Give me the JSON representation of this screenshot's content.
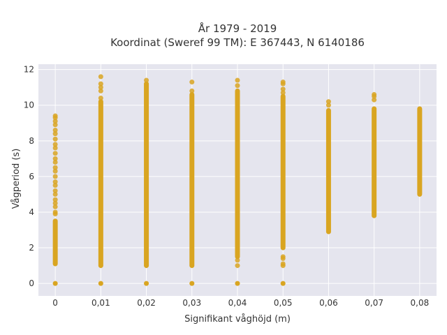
{
  "chart_data": {
    "type": "scatter",
    "title_lines": [
      "År 1979 - 2019",
      "Koordinat (Sweref 99 TM): E 367443, N 6140186"
    ],
    "xlabel": "Signifikant våghöjd (m)",
    "ylabel": "Vågperiod (s)",
    "x_tick_labels": [
      "0",
      "0,01",
      "0,02",
      "0,03",
      "0,04",
      "0,05",
      "0,06",
      "0,07",
      "0,08"
    ],
    "y_tick_labels": [
      "0",
      "2",
      "4",
      "6",
      "8",
      "10",
      "12"
    ],
    "xlim": [
      -0.0037,
      0.0837
    ],
    "ylim": [
      -0.7,
      12.3
    ],
    "grid": true,
    "legend": "none",
    "colors": {
      "marker": "#D9A521",
      "plot_bg": "#E5E5EE",
      "grid": "#FFFFFF"
    },
    "series": [
      {
        "x": 0.0,
        "zero_cluster": true,
        "solid_range": [
          1.1,
          3.5
        ],
        "points": [
          9.4,
          9.3,
          9.1,
          8.9,
          8.6,
          8.4,
          8.1,
          7.8,
          7.6,
          7.3,
          7.0,
          6.8,
          6.5,
          6.3,
          6.0,
          5.7,
          5.5,
          5.2,
          5.0,
          4.7,
          4.5,
          4.3,
          4.0,
          3.9
        ]
      },
      {
        "x": 0.01,
        "zero_cluster": true,
        "solid_range": [
          1.0,
          10.2
        ],
        "points": [
          11.6,
          11.2,
          11.0,
          10.8,
          10.4
        ]
      },
      {
        "x": 0.02,
        "zero_cluster": true,
        "solid_range": [
          1.0,
          11.2
        ],
        "points": [
          11.4
        ]
      },
      {
        "x": 0.03,
        "zero_cluster": true,
        "solid_range": [
          1.0,
          10.6
        ],
        "points": [
          11.3,
          10.8
        ]
      },
      {
        "x": 0.04,
        "zero_cluster": true,
        "solid_range": [
          1.5,
          10.8
        ],
        "points": [
          11.4,
          11.1,
          1.3,
          1.0
        ]
      },
      {
        "x": 0.05,
        "zero_cluster": true,
        "solid_range": [
          2.0,
          10.5
        ],
        "points": [
          11.3,
          11.2,
          10.9,
          10.7,
          1.5,
          1.4,
          1.1,
          1.0
        ]
      },
      {
        "x": 0.06,
        "zero_cluster": false,
        "solid_range": [
          2.9,
          9.7
        ],
        "points": [
          10.2,
          10.0
        ]
      },
      {
        "x": 0.07,
        "zero_cluster": false,
        "solid_range": [
          3.8,
          9.8
        ],
        "points": [
          10.6,
          10.5,
          10.3
        ]
      },
      {
        "x": 0.08,
        "zero_cluster": false,
        "solid_range": [
          5.0,
          9.8
        ],
        "points": []
      }
    ]
  }
}
